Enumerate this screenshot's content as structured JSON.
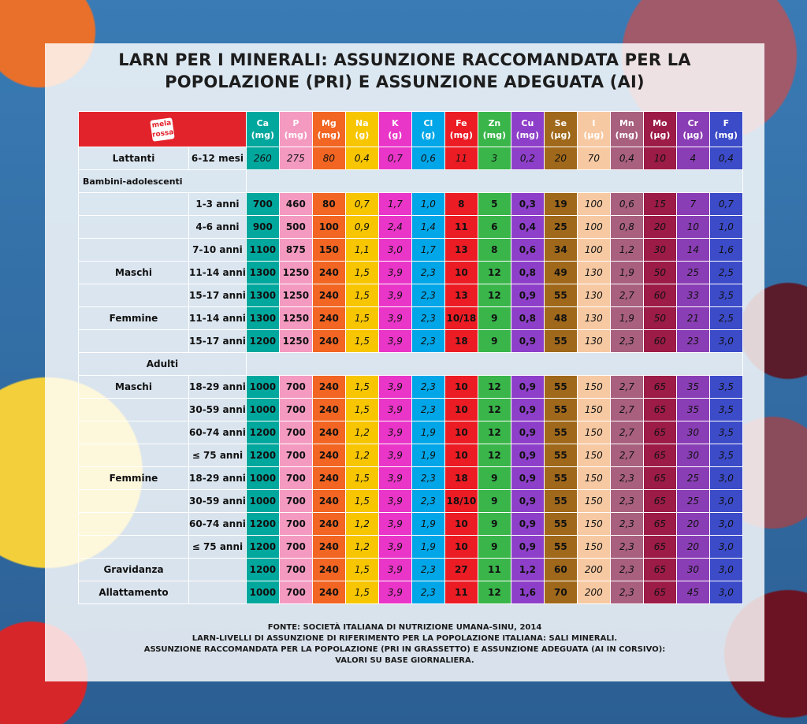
{
  "title": {
    "line1": "LARN PER I MINERALI: ASSUNZIONE RACCOMANDATA PER LA",
    "line2": "POPOLAZIONE (PRI) E ASSUNZIONE ADEGUATA (AI)"
  },
  "logo": {
    "line1": "mela",
    "line2": "rossa"
  },
  "columns": [
    {
      "sym": "Ca",
      "unit": "(mg)",
      "bg": "#00a79d"
    },
    {
      "sym": "P",
      "unit": "(mg)",
      "bg": "#f49ac1"
    },
    {
      "sym": "Mg",
      "unit": "(mg)",
      "bg": "#f26522"
    },
    {
      "sym": "Na",
      "unit": "(g)",
      "bg": "#f7c600"
    },
    {
      "sym": "K",
      "unit": "(g)",
      "bg": "#e935c8"
    },
    {
      "sym": "Cl",
      "unit": "(g)",
      "bg": "#00a6e8"
    },
    {
      "sym": "Fe",
      "unit": "(mg)",
      "bg": "#ec1c24"
    },
    {
      "sym": "Zn",
      "unit": "(mg)",
      "bg": "#39b54a"
    },
    {
      "sym": "Cu",
      "unit": "(mg)",
      "bg": "#8e3fc9"
    },
    {
      "sym": "Se",
      "unit": "(µg)",
      "bg": "#a0681a"
    },
    {
      "sym": "I",
      "unit": "(µg)",
      "bg": "#f7c9a2"
    },
    {
      "sym": "Mn",
      "unit": "(mg)",
      "bg": "#a8607e"
    },
    {
      "sym": "Mo",
      "unit": "(µg)",
      "bg": "#9c1b47"
    },
    {
      "sym": "Cr",
      "unit": "(µg)",
      "bg": "#8a3eb5"
    },
    {
      "sym": "F",
      "unit": "(mg)",
      "bg": "#3c4bc8"
    }
  ],
  "cellstyle": [
    "b",
    "b",
    "b",
    "i",
    "i",
    "i",
    "b",
    "b",
    "b",
    "b",
    "i",
    "i",
    "i",
    "i",
    "i"
  ],
  "colbg": [
    "#00a79d",
    "#f49ac1",
    "#f26522",
    "#f7c600",
    "#e935c8",
    "#00a6e8",
    "#ec1c24",
    "#39b54a",
    "#8e3fc9",
    "#a0681a",
    "#f7c9a2",
    "#a8607e",
    "#9c1b47",
    "#8a3eb5",
    "#3c4bc8"
  ],
  "rows": [
    {
      "type": "data",
      "group": "Lattanti",
      "age": "6-12 mesi",
      "all_italic": true,
      "values": [
        "260",
        "275",
        "80",
        "0,4",
        "0,7",
        "0,6",
        "11",
        "3",
        "0,2",
        "20",
        "70",
        "0,4",
        "10",
        "4",
        "0,4"
      ]
    },
    {
      "type": "section",
      "label": "Bambini-adolescenti"
    },
    {
      "type": "data",
      "group": "",
      "age": "1-3 anni",
      "values": [
        "700",
        "460",
        "80",
        "0,7",
        "1,7",
        "1,0",
        "8",
        "5",
        "0,3",
        "19",
        "100",
        "0,6",
        "15",
        "7",
        "0,7"
      ]
    },
    {
      "type": "data",
      "group": "",
      "age": "4-6 anni",
      "values": [
        "900",
        "500",
        "100",
        "0,9",
        "2,4",
        "1,4",
        "11",
        "6",
        "0,4",
        "25",
        "100",
        "0,8",
        "20",
        "10",
        "1,0"
      ]
    },
    {
      "type": "data",
      "group": "",
      "age": "7-10 anni",
      "values": [
        "1100",
        "875",
        "150",
        "1,1",
        "3,0",
        "1,7",
        "13",
        "8",
        "0,6",
        "34",
        "100",
        "1,2",
        "30",
        "14",
        "1,6"
      ]
    },
    {
      "type": "data",
      "group": "Maschi",
      "age": "11-14 anni",
      "values": [
        "1300",
        "1250",
        "240",
        "1,5",
        "3,9",
        "2,3",
        "10",
        "12",
        "0,8",
        "49",
        "130",
        "1,9",
        "50",
        "25",
        "2,5"
      ]
    },
    {
      "type": "data",
      "group": "",
      "age": "15-17 anni",
      "values": [
        "1300",
        "1250",
        "240",
        "1,5",
        "3,9",
        "2,3",
        "13",
        "12",
        "0,9",
        "55",
        "130",
        "2,7",
        "60",
        "33",
        "3,5"
      ]
    },
    {
      "type": "data",
      "group": "Femmine",
      "age": "11-14 anni",
      "values": [
        "1300",
        "1250",
        "240",
        "1,5",
        "3,9",
        "2,3",
        "10/18",
        "9",
        "0,8",
        "48",
        "130",
        "1,9",
        "50",
        "21",
        "2,5"
      ]
    },
    {
      "type": "data",
      "group": "",
      "age": "15-17 anni",
      "values": [
        "1200",
        "1250",
        "240",
        "1,5",
        "3,9",
        "2,3",
        "18",
        "9",
        "0,9",
        "55",
        "130",
        "2,3",
        "60",
        "23",
        "3,0"
      ]
    },
    {
      "type": "section",
      "label": "Adulti",
      "centered": true
    },
    {
      "type": "data",
      "group": "Maschi",
      "age": "18-29 anni",
      "values": [
        "1000",
        "700",
        "240",
        "1,5",
        "3,9",
        "2,3",
        "10",
        "12",
        "0,9",
        "55",
        "150",
        "2,7",
        "65",
        "35",
        "3,5"
      ]
    },
    {
      "type": "data",
      "group": "",
      "age": "30-59 anni",
      "values": [
        "1000",
        "700",
        "240",
        "1,5",
        "3,9",
        "2,3",
        "10",
        "12",
        "0,9",
        "55",
        "150",
        "2,7",
        "65",
        "35",
        "3,5"
      ]
    },
    {
      "type": "data",
      "group": "",
      "age": "60-74 anni",
      "values": [
        "1200",
        "700",
        "240",
        "1,2",
        "3,9",
        "1,9",
        "10",
        "12",
        "0,9",
        "55",
        "150",
        "2,7",
        "65",
        "30",
        "3,5"
      ]
    },
    {
      "type": "data",
      "group": "",
      "age": "≤ 75 anni",
      "values": [
        "1200",
        "700",
        "240",
        "1,2",
        "3,9",
        "1,9",
        "10",
        "12",
        "0,9",
        "55",
        "150",
        "2,7",
        "65",
        "30",
        "3,5"
      ]
    },
    {
      "type": "data",
      "group": "Femmine",
      "age": "18-29 anni",
      "values": [
        "1000",
        "700",
        "240",
        "1,5",
        "3,9",
        "2,3",
        "18",
        "9",
        "0,9",
        "55",
        "150",
        "2,3",
        "65",
        "25",
        "3,0"
      ]
    },
    {
      "type": "data",
      "group": "",
      "age": "30-59 anni",
      "values": [
        "1000",
        "700",
        "240",
        "1,5",
        "3,9",
        "2,3",
        "18/10",
        "9",
        "0,9",
        "55",
        "150",
        "2,3",
        "65",
        "25",
        "3,0"
      ]
    },
    {
      "type": "data",
      "group": "",
      "age": "60-74 anni",
      "values": [
        "1200",
        "700",
        "240",
        "1,2",
        "3,9",
        "1,9",
        "10",
        "9",
        "0,9",
        "55",
        "150",
        "2,3",
        "65",
        "20",
        "3,0"
      ]
    },
    {
      "type": "data",
      "group": "",
      "age": "≤ 75 anni",
      "values": [
        "1200",
        "700",
        "240",
        "1,2",
        "3,9",
        "1,9",
        "10",
        "9",
        "0,9",
        "55",
        "150",
        "2,3",
        "65",
        "20",
        "3,0"
      ]
    },
    {
      "type": "data",
      "group": "Gravidanza",
      "age": "",
      "values": [
        "1200",
        "700",
        "240",
        "1,5",
        "3,9",
        "2,3",
        "27",
        "11",
        "1,2",
        "60",
        "200",
        "2,3",
        "65",
        "30",
        "3,0"
      ]
    },
    {
      "type": "data",
      "group": "Allattamento",
      "age": "",
      "values": [
        "1000",
        "700",
        "240",
        "1,5",
        "3,9",
        "2,3",
        "11",
        "12",
        "1,6",
        "70",
        "200",
        "2,3",
        "65",
        "45",
        "3,0"
      ]
    }
  ],
  "source": {
    "line1": "FONTE: SOCIETÀ ITALIANA DI NUTRIZIONE UMANA-SINU, 2014",
    "line2": "LARN-LIVELLI DI ASSUNZIONE DI RIFERIMENTO PER LA POPOLAZIONE ITALIANA: SALI MINERALI.",
    "line3": "ASSUNZIONE RACCOMANDATA PER LA POPOLAZIONE (PRI IN GRASSETTO) E ASSUNZIONE ADEGUATA (AI IN CORSIVO):",
    "line4": "VALORI SU BASE GIORNALIERA."
  }
}
